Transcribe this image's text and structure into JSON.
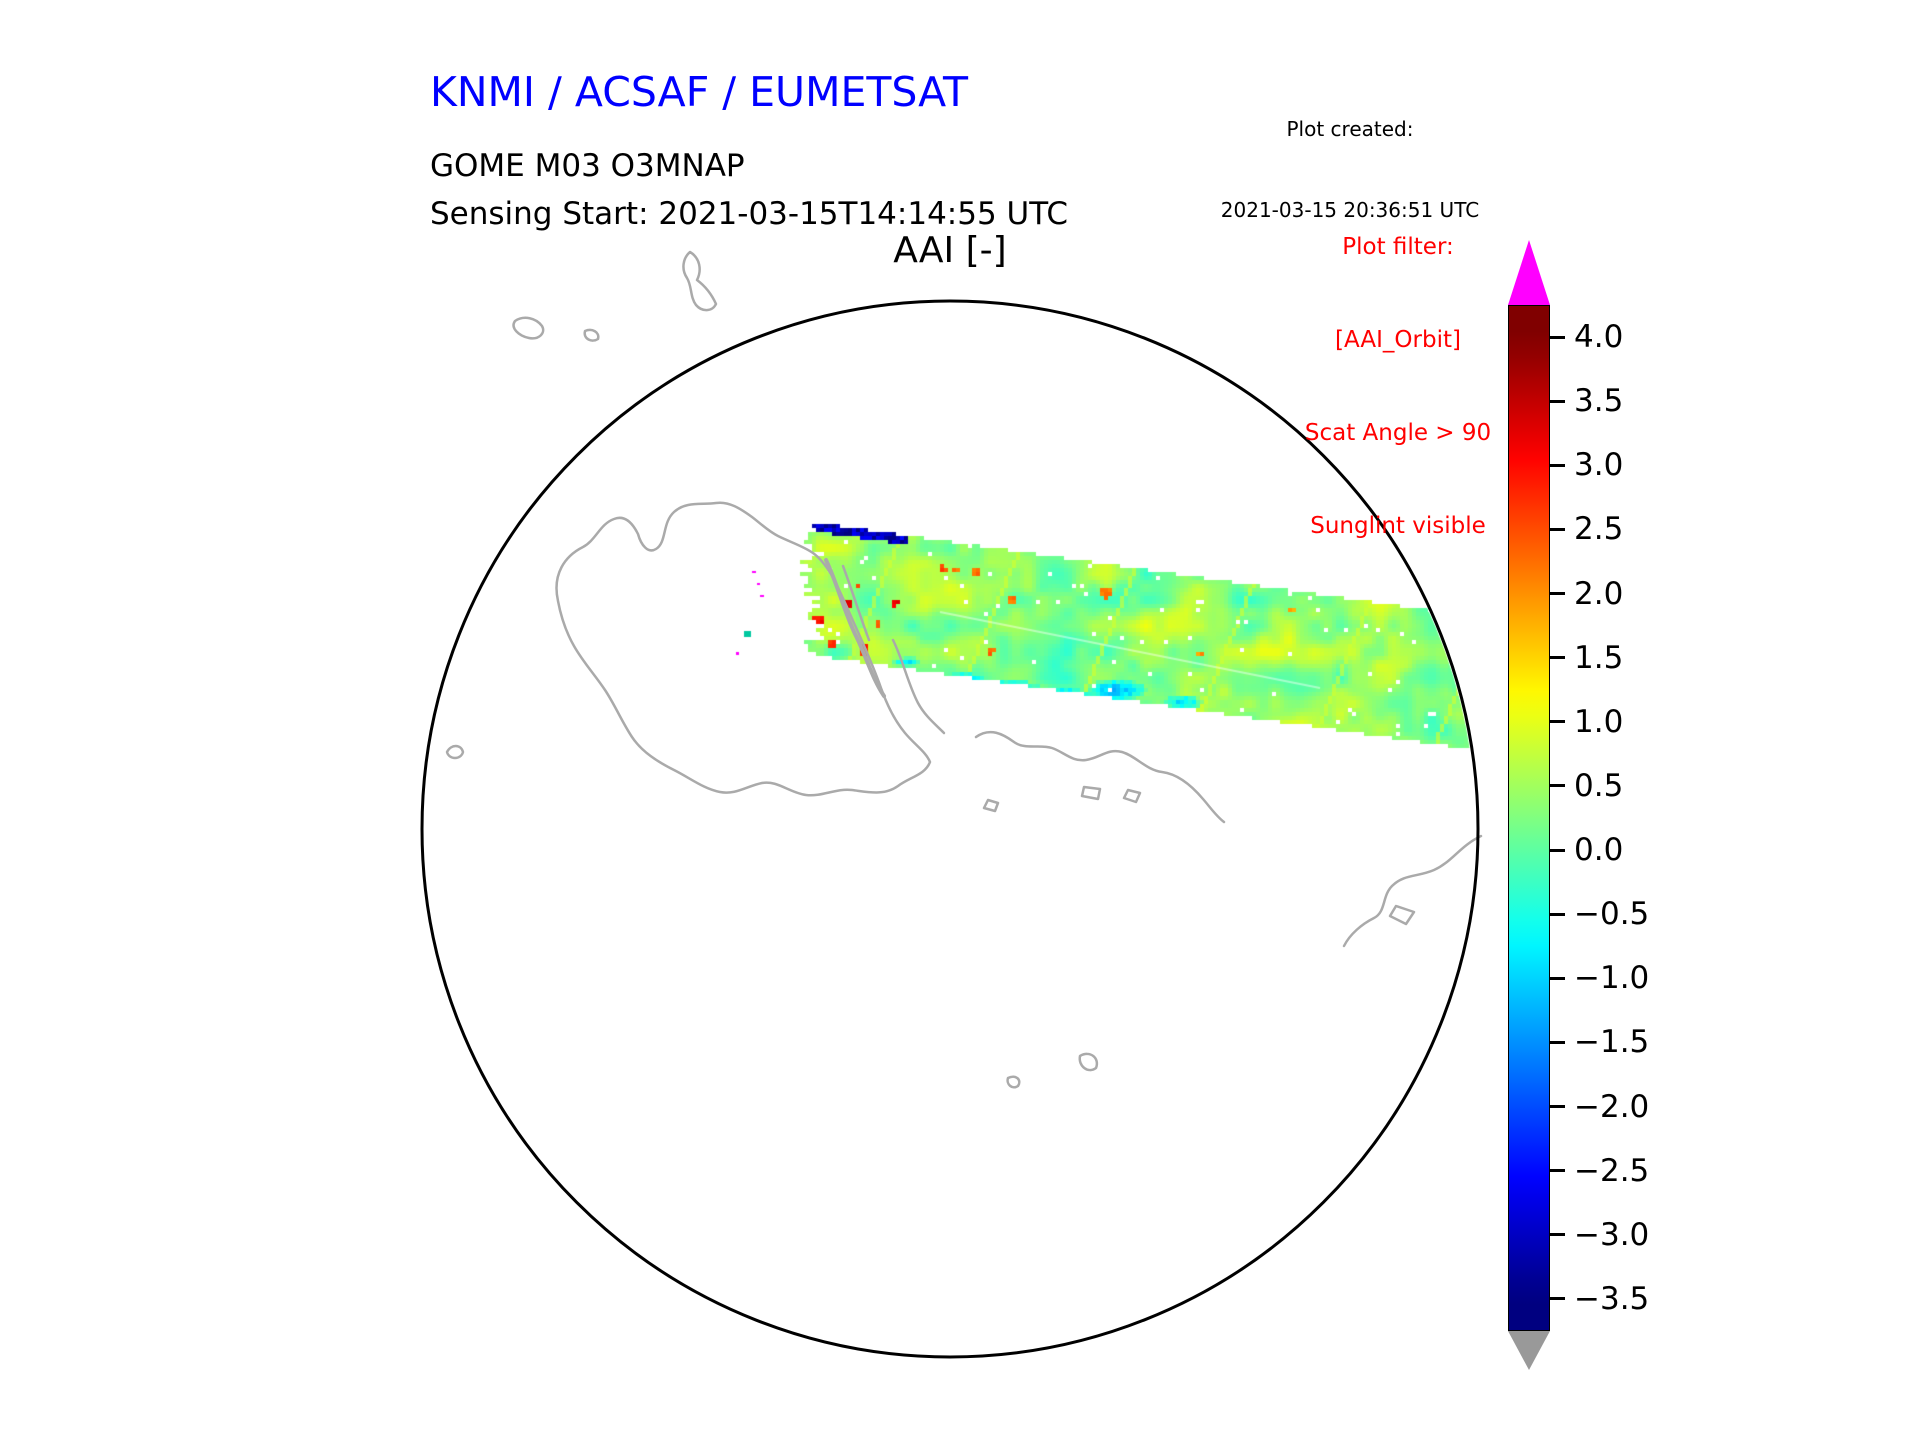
{
  "header": {
    "agency_title": "KNMI / ACSAF / EUMETSAT",
    "plot_created_label": "Plot created:",
    "plot_created_time": "2021-03-15 20:36:51 UTC",
    "product_line1": "GOME M03 O3MNAP",
    "product_line2": "Sensing Start: 2021-03-15T14:14:55 UTC",
    "plot_title": "AAI [-]"
  },
  "filter_note": {
    "color": "#ff0000",
    "lines": [
      "Plot filter:",
      "[AAI_Orbit]",
      "Scat Angle > 90",
      "Sunglint visible"
    ]
  },
  "colorbar": {
    "tick_labels": [
      "4.0",
      "3.5",
      "3.0",
      "2.5",
      "2.0",
      "1.5",
      "1.0",
      "0.5",
      "0.0",
      "−0.5",
      "−1.0",
      "−1.5",
      "−2.0",
      "−2.5",
      "−3.0",
      "−3.5"
    ],
    "vmin": -3.5,
    "vmax": 4.0,
    "colormap": "jet",
    "over_color": "#ff00ff",
    "under_color": "#999999"
  },
  "chart_data": {
    "type": "heatmap",
    "subtype": "satellite-orbit-swath-on-polar-stereographic-map",
    "title": "AAI [-]",
    "platform_product": "GOME M03 O3MNAP",
    "sensing_start": "2021-03-15T14:14:55 UTC",
    "value_range": [
      -3.5,
      4.0
    ],
    "colormap": "jet",
    "colorbar_ticks": [
      4.0,
      3.5,
      3.0,
      2.5,
      2.0,
      1.5,
      1.0,
      0.5,
      0.0,
      -0.5,
      -1.0,
      -1.5,
      -2.0,
      -2.5,
      -3.0,
      -3.5
    ],
    "colorbar_extend": {
      "over_color": "#ff00ff",
      "under_color": "#999999"
    },
    "map": {
      "projection": "south polar stereographic",
      "region": "Antarctica",
      "coastline_color": "#aaaaaa",
      "boundary_color": "#000000"
    },
    "swath_summary": {
      "dominant_values": "-0.5 to 1.0 (green / cyan / yellow-green)",
      "features": [
        "dark blue pixels (about -2.5 to -3) along the poleward edge of the swath start",
        "scattered orange-red spots (about +2 to +3) near the swath start over the Antarctic Peninsula",
        "cyan-blue patches (about -1 to -2) mid-swath near the lower edge",
        "isolated magenta out-of-range specks and one teal pixel near the pole"
      ]
    }
  }
}
